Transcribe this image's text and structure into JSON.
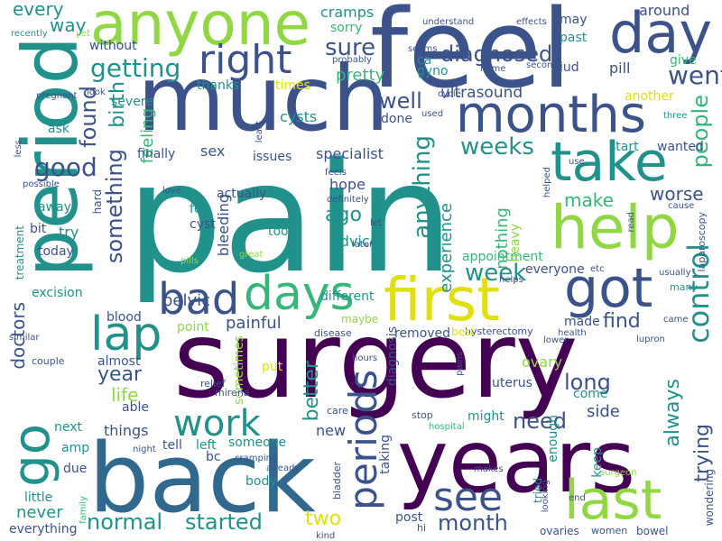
{
  "colors": {
    "purple": "#440154",
    "indigo": "#3b528b",
    "blue": "#31688e",
    "teal": "#21918c",
    "green": "#35b779",
    "lime": "#90d743",
    "yellow": "#e0e010"
  },
  "words": [
    {
      "text": "pain",
      "color": "teal"
    },
    {
      "text": "surgery",
      "color": "purple"
    },
    {
      "text": "feel",
      "color": "indigo"
    },
    {
      "text": "much",
      "color": "indigo"
    },
    {
      "text": "back",
      "color": "blue"
    },
    {
      "text": "years",
      "color": "purple"
    },
    {
      "text": "period",
      "color": "teal"
    },
    {
      "text": "anyone",
      "color": "lime"
    },
    {
      "text": "day",
      "color": "indigo"
    },
    {
      "text": "first",
      "color": "yellow"
    },
    {
      "text": "months",
      "color": "indigo"
    },
    {
      "text": "help",
      "color": "lime"
    },
    {
      "text": "take",
      "color": "teal"
    },
    {
      "text": "got",
      "color": "indigo"
    },
    {
      "text": "last",
      "color": "lime"
    },
    {
      "text": "days",
      "color": "green"
    },
    {
      "text": "go",
      "color": "teal"
    },
    {
      "text": "periods",
      "color": "indigo"
    },
    {
      "text": "bad",
      "color": "indigo"
    },
    {
      "text": "lap",
      "color": "teal"
    },
    {
      "text": "right",
      "color": "indigo"
    },
    {
      "text": "control",
      "color": "teal"
    },
    {
      "text": "work",
      "color": "teal"
    },
    {
      "text": "see",
      "color": "indigo"
    },
    {
      "text": "good",
      "color": "indigo"
    },
    {
      "text": "went",
      "color": "indigo"
    },
    {
      "text": "getting",
      "color": "teal"
    },
    {
      "text": "something",
      "color": "indigo"
    },
    {
      "text": "found",
      "color": "indigo"
    },
    {
      "text": "birth",
      "color": "teal"
    },
    {
      "text": "people",
      "color": "green"
    },
    {
      "text": "weeks",
      "color": "teal"
    },
    {
      "text": "anything",
      "color": "teal"
    },
    {
      "text": "diagnosed",
      "color": "indigo"
    },
    {
      "text": "well",
      "color": "indigo"
    },
    {
      "text": "sure",
      "color": "indigo"
    },
    {
      "text": "ultrasound",
      "color": "indigo"
    },
    {
      "text": "worse",
      "color": "indigo"
    },
    {
      "text": "make",
      "color": "green"
    },
    {
      "text": "week",
      "color": "teal"
    },
    {
      "text": "month",
      "color": "indigo"
    },
    {
      "text": "two",
      "color": "yellow"
    },
    {
      "text": "normal",
      "color": "teal"
    },
    {
      "text": "started",
      "color": "teal"
    },
    {
      "text": "need",
      "color": "indigo"
    },
    {
      "text": "long",
      "color": "indigo"
    },
    {
      "text": "find",
      "color": "indigo"
    },
    {
      "text": "better",
      "color": "teal"
    },
    {
      "text": "trying",
      "color": "indigo"
    },
    {
      "text": "always",
      "color": "teal"
    },
    {
      "text": "doctors",
      "color": "indigo"
    },
    {
      "text": "year",
      "color": "indigo"
    },
    {
      "text": "life",
      "color": "lime"
    },
    {
      "text": "pelvic",
      "color": "indigo"
    },
    {
      "text": "painful",
      "color": "indigo"
    },
    {
      "text": "bleeding",
      "color": "indigo"
    },
    {
      "text": "specialist",
      "color": "indigo"
    },
    {
      "text": "experience",
      "color": "teal"
    },
    {
      "text": "nothing",
      "color": "green"
    },
    {
      "text": "feeling",
      "color": "green"
    },
    {
      "text": "ago",
      "color": "teal"
    },
    {
      "text": "every",
      "color": "teal"
    },
    {
      "text": "way",
      "color": "teal"
    },
    {
      "text": "cramps",
      "color": "teal"
    },
    {
      "text": "around",
      "color": "indigo"
    },
    {
      "text": "pill",
      "color": "indigo"
    },
    {
      "text": "pretty",
      "color": "green"
    },
    {
      "text": "sex",
      "color": "indigo"
    },
    {
      "text": "finally",
      "color": "indigo"
    },
    {
      "text": "issues",
      "color": "indigo"
    },
    {
      "text": "hope",
      "color": "indigo"
    },
    {
      "text": "advice",
      "color": "teal"
    },
    {
      "text": "took",
      "color": "teal"
    },
    {
      "text": "cysts",
      "color": "teal"
    },
    {
      "text": "appointment",
      "color": "green"
    },
    {
      "text": "everyone",
      "color": "indigo"
    },
    {
      "text": "excision",
      "color": "teal"
    },
    {
      "text": "different",
      "color": "teal"
    },
    {
      "text": "removed",
      "color": "indigo"
    },
    {
      "text": "diagnosis",
      "color": "indigo"
    },
    {
      "text": "uterus",
      "color": "indigo"
    },
    {
      "text": "things",
      "color": "indigo"
    },
    {
      "text": "able",
      "color": "indigo"
    },
    {
      "text": "new",
      "color": "indigo"
    },
    {
      "text": "might",
      "color": "teal"
    },
    {
      "text": "side",
      "color": "indigo"
    },
    {
      "text": "taking",
      "color": "indigo"
    },
    {
      "text": "body",
      "color": "teal"
    },
    {
      "text": "never",
      "color": "teal"
    },
    {
      "text": "everything",
      "color": "indigo"
    },
    {
      "text": "actually",
      "color": "indigo"
    },
    {
      "text": "try",
      "color": "teal"
    },
    {
      "text": "today",
      "color": "indigo"
    },
    {
      "text": "treatment",
      "color": "teal"
    },
    {
      "text": "blood",
      "color": "indigo"
    },
    {
      "text": "almost",
      "color": "indigo"
    },
    {
      "text": "made",
      "color": "indigo"
    },
    {
      "text": "ovary",
      "color": "lime"
    },
    {
      "text": "come",
      "color": "teal"
    },
    {
      "text": "keep",
      "color": "teal"
    },
    {
      "text": "enough",
      "color": "teal"
    },
    {
      "text": "someone",
      "color": "teal"
    },
    {
      "text": "left",
      "color": "teal"
    },
    {
      "text": "bc",
      "color": "indigo"
    },
    {
      "text": "tell",
      "color": "indigo"
    },
    {
      "text": "next",
      "color": "teal"
    },
    {
      "text": "amp",
      "color": "teal"
    },
    {
      "text": "due",
      "color": "indigo"
    },
    {
      "text": "little",
      "color": "teal"
    },
    {
      "text": "post",
      "color": "indigo"
    },
    {
      "text": "hi",
      "color": "indigo"
    },
    {
      "text": "ovaries",
      "color": "indigo"
    },
    {
      "text": "maybe",
      "color": "lime"
    },
    {
      "text": "point",
      "color": "lime"
    },
    {
      "text": "put",
      "color": "yellow"
    },
    {
      "text": "sometimes",
      "color": "lime"
    },
    {
      "text": "heavy",
      "color": "lime"
    },
    {
      "text": "felt",
      "color": "teal"
    },
    {
      "text": "cyst",
      "color": "indigo"
    },
    {
      "text": "bit",
      "color": "indigo"
    },
    {
      "text": "away",
      "color": "teal"
    },
    {
      "text": "hard",
      "color": "indigo"
    },
    {
      "text": "ask",
      "color": "teal"
    },
    {
      "text": "severe",
      "color": "teal"
    },
    {
      "text": "thanks",
      "color": "teal"
    },
    {
      "text": "times",
      "color": "yellow"
    },
    {
      "text": "done",
      "color": "indigo"
    },
    {
      "text": "another",
      "color": "yellow"
    },
    {
      "text": "wanted",
      "color": "indigo"
    },
    {
      "text": "start",
      "color": "teal"
    },
    {
      "text": "give",
      "color": "green"
    },
    {
      "text": "past",
      "color": "teal"
    },
    {
      "text": "iud",
      "color": "indigo"
    },
    {
      "text": "may",
      "color": "indigo"
    },
    {
      "text": "gyno",
      "color": "teal"
    },
    {
      "text": "ca",
      "color": "teal"
    },
    {
      "text": "sorry",
      "color": "green"
    },
    {
      "text": "without",
      "color": "indigo"
    },
    {
      "text": "lupron",
      "color": "indigo"
    },
    {
      "text": "hysterectomy",
      "color": "indigo"
    },
    {
      "text": "laparoscopy",
      "color": "indigo"
    },
    {
      "text": "wondering",
      "color": "indigo"
    },
    {
      "text": "many",
      "color": "teal"
    },
    {
      "text": "best",
      "color": "yellow"
    },
    {
      "text": "tried",
      "color": "teal"
    },
    {
      "text": "bowel",
      "color": "indigo"
    },
    {
      "text": "women",
      "color": "indigo"
    },
    {
      "text": "surgeon",
      "color": "lime"
    },
    {
      "text": "stop",
      "color": "indigo"
    },
    {
      "text": "pains",
      "color": "indigo"
    },
    {
      "text": "relief",
      "color": "indigo"
    },
    {
      "text": "mirena",
      "color": "indigo"
    },
    {
      "text": "couple",
      "color": "indigo"
    },
    {
      "text": "disease",
      "color": "indigo"
    },
    {
      "text": "hours",
      "color": "indigo"
    },
    {
      "text": "care",
      "color": "indigo"
    },
    {
      "text": "night",
      "color": "indigo"
    },
    {
      "text": "cramping",
      "color": "indigo"
    },
    {
      "text": "already",
      "color": "indigo"
    },
    {
      "text": "bladder",
      "color": "indigo"
    },
    {
      "text": "kind",
      "color": "indigo"
    },
    {
      "text": "family",
      "color": "green"
    },
    {
      "text": "makes",
      "color": "indigo"
    },
    {
      "text": "hospital",
      "color": "green"
    },
    {
      "text": "end",
      "color": "indigo"
    },
    {
      "text": "lower",
      "color": "indigo"
    },
    {
      "text": "health",
      "color": "indigo"
    },
    {
      "text": "came",
      "color": "indigo"
    },
    {
      "text": "etc",
      "color": "indigo"
    },
    {
      "text": "usually",
      "color": "indigo"
    },
    {
      "text": "helps",
      "color": "indigo"
    },
    {
      "text": "similar",
      "color": "indigo"
    },
    {
      "text": "great",
      "color": "lime"
    },
    {
      "text": "pills",
      "color": "lime"
    },
    {
      "text": "later",
      "color": "indigo"
    },
    {
      "text": "let",
      "color": "indigo"
    },
    {
      "text": "definitely",
      "color": "indigo"
    },
    {
      "text": "love",
      "color": "indigo"
    },
    {
      "text": "feels",
      "color": "indigo"
    },
    {
      "text": "least",
      "color": "indigo"
    },
    {
      "text": "possible",
      "color": "indigo"
    },
    {
      "text": "less",
      "color": "indigo"
    },
    {
      "text": "pregnant",
      "color": "indigo"
    },
    {
      "text": "look",
      "color": "indigo"
    },
    {
      "text": "recently",
      "color": "teal"
    },
    {
      "text": "yet",
      "color": "lime"
    },
    {
      "text": "understand",
      "color": "indigo"
    },
    {
      "text": "effects",
      "color": "indigo"
    },
    {
      "text": "seems",
      "color": "indigo"
    },
    {
      "text": "probably",
      "color": "indigo"
    },
    {
      "text": "cycle",
      "color": "indigo"
    },
    {
      "text": "used",
      "color": "indigo"
    },
    {
      "text": "home",
      "color": "indigo"
    },
    {
      "text": "second",
      "color": "indigo"
    },
    {
      "text": "three",
      "color": "teal"
    },
    {
      "text": "cause",
      "color": "indigo"
    },
    {
      "text": "read",
      "color": "indigo"
    },
    {
      "text": "use",
      "color": "indigo"
    },
    {
      "text": "helped",
      "color": "indigo"
    },
    {
      "text": "looking",
      "color": "indigo"
    }
  ]
}
